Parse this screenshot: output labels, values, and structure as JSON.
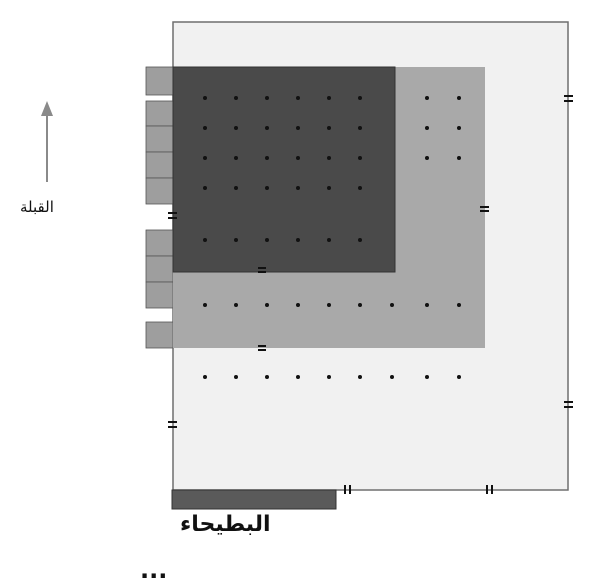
{
  "labels": {
    "qibla": "القبلة",
    "batha": "البطيحاء",
    "caption": "..."
  },
  "colors": {
    "background": "#ffffff",
    "courtyard_fill": "#f1f1f1",
    "outer_wall": "#6f6f6f",
    "covered_area": "#a9a9a9",
    "inner_covered_area": "#4a4a4a",
    "side_rooms": "#9e9e9e",
    "batha_block": "#5a5a5a",
    "columns": "#111111",
    "arrow": "#8a8a8a"
  },
  "icons": {
    "qibla_arrow": "arrow-up-icon",
    "wall_openings": "double-bar-icon"
  }
}
